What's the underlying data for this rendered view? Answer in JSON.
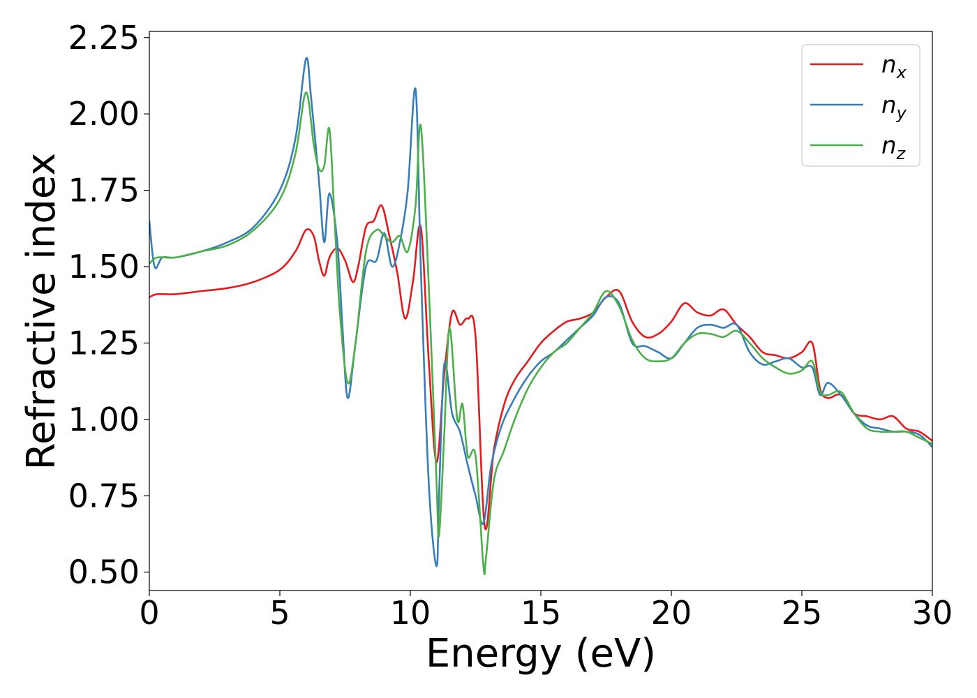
{
  "chart_data": {
    "type": "line",
    "title": "",
    "xlabel": "Energy (eV)",
    "ylabel": "Refractive index",
    "xlim": [
      0,
      30
    ],
    "ylim": [
      0.44,
      2.27
    ],
    "xticks": [
      0,
      5,
      10,
      15,
      20,
      25,
      30
    ],
    "xtick_labels": [
      "0",
      "5",
      "10",
      "15",
      "20",
      "25",
      "30"
    ],
    "yticks": [
      0.5,
      0.75,
      1.0,
      1.25,
      1.5,
      1.75,
      2.0,
      2.25
    ],
    "ytick_labels": [
      "0.50",
      "0.75",
      "1.00",
      "1.25",
      "1.50",
      "1.75",
      "2.00",
      "2.25"
    ],
    "grid": false,
    "legend_position": "top-right",
    "series": [
      {
        "name": "n",
        "subscript": "x",
        "color": "#e41a1c",
        "x": [
          0,
          0.3,
          1,
          2,
          3,
          4,
          5,
          5.6,
          6.0,
          6.3,
          6.5,
          6.7,
          6.9,
          7.2,
          7.5,
          7.8,
          8.0,
          8.3,
          8.6,
          8.9,
          9.2,
          9.5,
          9.8,
          10.1,
          10.4,
          10.7,
          11.0,
          11.3,
          11.6,
          11.9,
          12.2,
          12.5,
          12.85,
          13.2,
          13.6,
          14.0,
          14.5,
          15.0,
          15.5,
          16.0,
          16.5,
          17.0,
          17.5,
          18.0,
          18.5,
          19.0,
          19.5,
          20.0,
          20.5,
          21.0,
          21.5,
          22.0,
          22.5,
          23.0,
          23.5,
          24.0,
          24.5,
          25.0,
          25.4,
          25.7,
          26.0,
          26.5,
          27.0,
          27.5,
          28.0,
          28.5,
          29.0,
          29.5,
          30.0
        ],
        "y": [
          1.4,
          1.41,
          1.41,
          1.42,
          1.43,
          1.45,
          1.49,
          1.55,
          1.62,
          1.6,
          1.52,
          1.47,
          1.53,
          1.56,
          1.52,
          1.45,
          1.5,
          1.63,
          1.65,
          1.7,
          1.6,
          1.48,
          1.33,
          1.45,
          1.63,
          1.2,
          0.86,
          1.15,
          1.35,
          1.31,
          1.33,
          1.27,
          0.65,
          0.9,
          1.05,
          1.13,
          1.19,
          1.25,
          1.29,
          1.32,
          1.33,
          1.35,
          1.4,
          1.42,
          1.32,
          1.27,
          1.28,
          1.32,
          1.38,
          1.35,
          1.34,
          1.36,
          1.31,
          1.27,
          1.22,
          1.21,
          1.2,
          1.22,
          1.25,
          1.1,
          1.07,
          1.08,
          1.02,
          1.01,
          1.0,
          1.01,
          0.97,
          0.96,
          0.93
        ]
      },
      {
        "name": "n",
        "subscript": "y",
        "color": "#377eb8",
        "x": [
          0,
          0.2,
          0.5,
          1,
          2,
          3,
          4,
          5,
          5.6,
          6.0,
          6.2,
          6.5,
          6.7,
          6.9,
          7.2,
          7.4,
          7.6,
          7.9,
          8.3,
          8.7,
          9.0,
          9.3,
          9.6,
          9.9,
          10.2,
          10.4,
          10.7,
          11.0,
          11.1,
          11.3,
          11.6,
          11.9,
          12.2,
          12.5,
          12.8,
          13.1,
          13.5,
          14.0,
          14.5,
          15.0,
          15.5,
          16.0,
          16.5,
          17.0,
          17.5,
          18.0,
          18.5,
          19.0,
          19.5,
          20.0,
          20.5,
          21.0,
          21.5,
          22.0,
          22.5,
          23.0,
          23.5,
          24.0,
          24.5,
          25.0,
          25.4,
          25.7,
          26.0,
          26.5,
          27.0,
          27.5,
          28.0,
          28.5,
          29.0,
          29.5,
          30.0
        ],
        "y": [
          1.65,
          1.5,
          1.53,
          1.53,
          1.55,
          1.58,
          1.63,
          1.75,
          1.92,
          2.18,
          2.05,
          1.78,
          1.58,
          1.74,
          1.58,
          1.3,
          1.07,
          1.25,
          1.5,
          1.52,
          1.61,
          1.5,
          1.58,
          1.75,
          2.08,
          1.5,
          0.8,
          0.52,
          0.75,
          1.18,
          1.02,
          0.96,
          0.85,
          0.75,
          0.66,
          0.85,
          0.98,
          1.07,
          1.14,
          1.19,
          1.22,
          1.26,
          1.3,
          1.34,
          1.4,
          1.38,
          1.25,
          1.24,
          1.22,
          1.2,
          1.25,
          1.3,
          1.31,
          1.3,
          1.31,
          1.22,
          1.18,
          1.19,
          1.2,
          1.17,
          1.17,
          1.08,
          1.12,
          1.08,
          1.02,
          0.98,
          0.97,
          0.96,
          0.96,
          0.95,
          0.91
        ]
      },
      {
        "name": "n",
        "subscript": "z",
        "color": "#4daf4a",
        "x": [
          0,
          0.3,
          1,
          2,
          3,
          4,
          5,
          5.6,
          6.0,
          6.3,
          6.5,
          6.7,
          6.9,
          7.1,
          7.3,
          7.6,
          7.9,
          8.3,
          8.7,
          9.0,
          9.3,
          9.6,
          9.9,
          10.2,
          10.4,
          10.7,
          11.0,
          11.1,
          11.3,
          11.5,
          11.8,
          12.0,
          12.2,
          12.5,
          12.8,
          12.9,
          13.2,
          13.6,
          14.0,
          14.5,
          15.0,
          15.5,
          16.0,
          16.5,
          17.0,
          17.5,
          18.0,
          18.5,
          19.0,
          19.5,
          20.0,
          20.5,
          21.0,
          21.5,
          22.0,
          22.5,
          23.0,
          23.5,
          24.0,
          24.5,
          25.0,
          25.4,
          25.7,
          26.0,
          26.5,
          27.0,
          27.5,
          28.0,
          28.5,
          29.0,
          29.5,
          30.0
        ],
        "y": [
          1.51,
          1.53,
          1.53,
          1.55,
          1.57,
          1.62,
          1.72,
          1.87,
          2.07,
          1.9,
          1.82,
          1.83,
          1.95,
          1.65,
          1.35,
          1.12,
          1.25,
          1.55,
          1.62,
          1.6,
          1.58,
          1.6,
          1.55,
          1.7,
          1.96,
          1.45,
          0.8,
          0.62,
          0.95,
          1.3,
          1.0,
          1.05,
          0.88,
          0.88,
          0.52,
          0.55,
          0.8,
          0.9,
          1.0,
          1.1,
          1.17,
          1.22,
          1.25,
          1.3,
          1.35,
          1.42,
          1.37,
          1.26,
          1.2,
          1.19,
          1.2,
          1.25,
          1.28,
          1.28,
          1.27,
          1.29,
          1.25,
          1.2,
          1.17,
          1.15,
          1.16,
          1.19,
          1.09,
          1.08,
          1.09,
          1.02,
          0.97,
          0.96,
          0.96,
          0.96,
          0.94,
          0.92
        ]
      }
    ]
  }
}
